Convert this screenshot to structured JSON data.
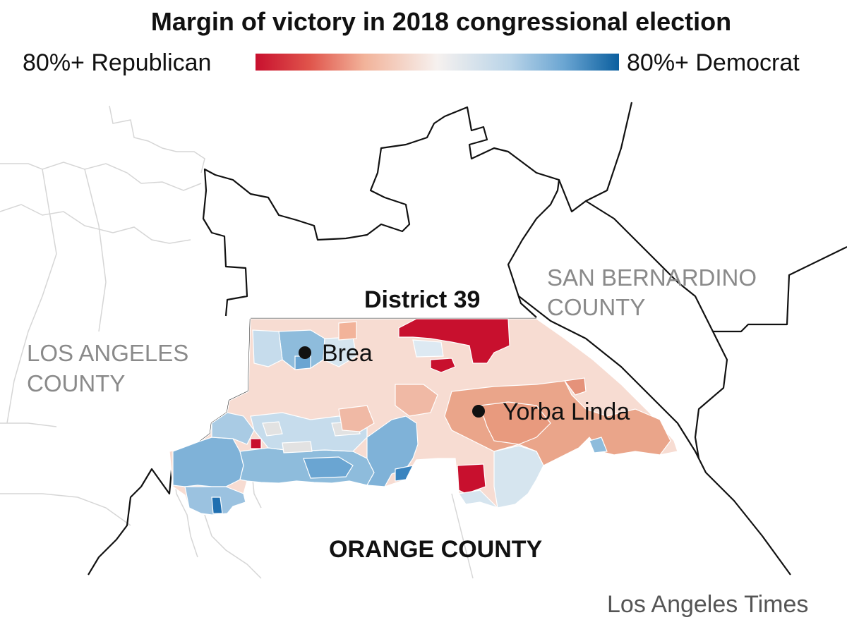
{
  "title": "Margin of victory in 2018 congressional election",
  "legend": {
    "left_label": "80%+ Republican",
    "right_label": "80%+ Democrat",
    "colors": [
      "#c8102e",
      "#e0554c",
      "#f2b39a",
      "#f6e8e4",
      "#d6e5ef",
      "#8ebcdc",
      "#1f6fb0",
      "#0b5f9f"
    ]
  },
  "map": {
    "district_label": "District 39",
    "county_labels": {
      "los_angeles": [
        "LOS ANGELES",
        "COUNTY"
      ],
      "san_bernardino": [
        "SAN BERNARDINO",
        "COUNTY"
      ],
      "orange": "ORANGE COUNTY"
    },
    "cities": [
      {
        "name": "Brea"
      },
      {
        "name": "Yorba Linda"
      }
    ],
    "colors": {
      "strong_republican": "#c8102e",
      "republican": "#e89a7e",
      "lean_republican": "#f6d5c8",
      "neutral": "#e5e5e5",
      "lean_democrat": "#c6dcec",
      "democrat": "#7fb2d8",
      "strong_democrat": "#1f6fb0"
    }
  },
  "credit": "Los Angeles Times"
}
